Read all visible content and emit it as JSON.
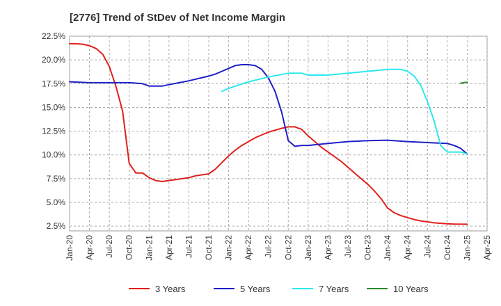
{
  "chart_data": {
    "type": "line",
    "title": "[2776]  Trend of StDev of Net Income Margin",
    "xlabel": "",
    "ylabel": "",
    "x_ticks": [
      "Jan-20",
      "Apr-20",
      "Jul-20",
      "Oct-20",
      "Jan-21",
      "Apr-21",
      "Jul-21",
      "Oct-21",
      "Jan-22",
      "Apr-22",
      "Jul-22",
      "Oct-22",
      "Jan-23",
      "Apr-23",
      "Jul-23",
      "Oct-23",
      "Jan-24",
      "Apr-24",
      "Jul-24",
      "Oct-24",
      "Jan-25",
      "Apr-25"
    ],
    "y_ticks": [
      "2.5%",
      "5.0%",
      "7.5%",
      "10.0%",
      "12.5%",
      "15.0%",
      "17.5%",
      "20.0%",
      "22.5%"
    ],
    "y_tick_values": [
      2.5,
      5.0,
      7.5,
      10.0,
      12.5,
      15.0,
      17.5,
      20.0,
      22.5
    ],
    "ylim": [
      2.0,
      22.5
    ],
    "grid": true,
    "legend_position": "bottom",
    "series": [
      {
        "name": "3 Years",
        "color": "#e0201b",
        "points": [
          [
            "Jan-20",
            21.7
          ],
          [
            "Feb-20",
            21.7
          ],
          [
            "Mar-20",
            21.65
          ],
          [
            "Apr-20",
            21.5
          ],
          [
            "May-20",
            21.2
          ],
          [
            "Jun-20",
            20.6
          ],
          [
            "Jul-20",
            19.3
          ],
          [
            "Aug-20",
            17.2
          ],
          [
            "Sep-20",
            14.6
          ],
          [
            "Oct-20",
            9.1
          ],
          [
            "Nov-20",
            8.1
          ],
          [
            "Dec-20",
            8.1
          ],
          [
            "Jan-21",
            7.6
          ],
          [
            "Feb-21",
            7.3
          ],
          [
            "Mar-21",
            7.2
          ],
          [
            "Apr-21",
            7.3
          ],
          [
            "May-21",
            7.4
          ],
          [
            "Jun-21",
            7.5
          ],
          [
            "Jul-21",
            7.6
          ],
          [
            "Aug-21",
            7.8
          ],
          [
            "Sep-21",
            7.9
          ],
          [
            "Oct-21",
            8.0
          ],
          [
            "Nov-21",
            8.5
          ],
          [
            "Dec-21",
            9.2
          ],
          [
            "Jan-22",
            9.9
          ],
          [
            "Feb-22",
            10.5
          ],
          [
            "Mar-22",
            11.0
          ],
          [
            "Apr-22",
            11.4
          ],
          [
            "May-22",
            11.8
          ],
          [
            "Jun-22",
            12.1
          ],
          [
            "Jul-22",
            12.4
          ],
          [
            "Aug-22",
            12.6
          ],
          [
            "Sep-22",
            12.8
          ],
          [
            "Oct-22",
            12.95
          ],
          [
            "Nov-22",
            12.95
          ],
          [
            "Dec-22",
            12.7
          ],
          [
            "Jan-23",
            12.0
          ],
          [
            "Feb-23",
            11.4
          ],
          [
            "Mar-23",
            10.8
          ],
          [
            "Apr-23",
            10.3
          ],
          [
            "May-23",
            9.8
          ],
          [
            "Jun-23",
            9.3
          ],
          [
            "Jul-23",
            8.7
          ],
          [
            "Aug-23",
            8.1
          ],
          [
            "Sep-23",
            7.5
          ],
          [
            "Oct-23",
            6.9
          ],
          [
            "Nov-23",
            6.2
          ],
          [
            "Dec-23",
            5.4
          ],
          [
            "Jan-24",
            4.4
          ],
          [
            "Feb-24",
            3.9
          ],
          [
            "Mar-24",
            3.6
          ],
          [
            "Apr-24",
            3.4
          ],
          [
            "May-24",
            3.2
          ],
          [
            "Jun-24",
            3.05
          ],
          [
            "Jul-24",
            2.95
          ],
          [
            "Aug-24",
            2.85
          ],
          [
            "Sep-24",
            2.8
          ],
          [
            "Oct-24",
            2.75
          ],
          [
            "Nov-24",
            2.72
          ],
          [
            "Dec-24",
            2.7
          ],
          [
            "Jan-25",
            2.7
          ]
        ]
      },
      {
        "name": "5 Years",
        "color": "#1f1fc8",
        "points": [
          [
            "Jan-20",
            17.7
          ],
          [
            "Apr-20",
            17.6
          ],
          [
            "Jul-20",
            17.6
          ],
          [
            "Oct-20",
            17.6
          ],
          [
            "Dec-20",
            17.5
          ],
          [
            "Jan-21",
            17.25
          ],
          [
            "Mar-21",
            17.25
          ],
          [
            "Apr-21",
            17.4
          ],
          [
            "Jul-21",
            17.8
          ],
          [
            "Oct-21",
            18.3
          ],
          [
            "Nov-21",
            18.5
          ],
          [
            "Dec-21",
            18.8
          ],
          [
            "Jan-22",
            19.1
          ],
          [
            "Feb-22",
            19.4
          ],
          [
            "Mar-22",
            19.5
          ],
          [
            "Apr-22",
            19.5
          ],
          [
            "May-22",
            19.4
          ],
          [
            "Jun-22",
            19.0
          ],
          [
            "Jul-22",
            18.1
          ],
          [
            "Aug-22",
            16.7
          ],
          [
            "Sep-22",
            14.5
          ],
          [
            "Oct-22",
            11.5
          ],
          [
            "Nov-22",
            10.9
          ],
          [
            "Dec-22",
            11.0
          ],
          [
            "Jan-23",
            11.0
          ],
          [
            "Apr-23",
            11.2
          ],
          [
            "Jul-23",
            11.4
          ],
          [
            "Oct-23",
            11.5
          ],
          [
            "Jan-24",
            11.55
          ],
          [
            "Apr-24",
            11.4
          ],
          [
            "Jul-24",
            11.3
          ],
          [
            "Oct-24",
            11.2
          ],
          [
            "Nov-24",
            11.0
          ],
          [
            "Dec-24",
            10.7
          ],
          [
            "Jan-25",
            10.1
          ]
        ]
      },
      {
        "name": "7 Years",
        "color": "#2ee8ee",
        "points": [
          [
            "Dec-21",
            16.7
          ],
          [
            "Jan-22",
            17.0
          ],
          [
            "Apr-22",
            17.7
          ],
          [
            "Jul-22",
            18.2
          ],
          [
            "Oct-22",
            18.6
          ],
          [
            "Dec-22",
            18.6
          ],
          [
            "Jan-23",
            18.4
          ],
          [
            "Apr-23",
            18.4
          ],
          [
            "Jul-23",
            18.6
          ],
          [
            "Oct-23",
            18.8
          ],
          [
            "Jan-24",
            19.0
          ],
          [
            "Mar-24",
            19.0
          ],
          [
            "Apr-24",
            18.8
          ],
          [
            "May-24",
            18.3
          ],
          [
            "Jun-24",
            17.3
          ],
          [
            "Jul-24",
            15.6
          ],
          [
            "Aug-24",
            13.6
          ],
          [
            "Sep-24",
            11.0
          ],
          [
            "Oct-24",
            10.3
          ],
          [
            "Nov-24",
            10.3
          ],
          [
            "Dec-24",
            10.3
          ],
          [
            "Jan-25",
            10.1
          ]
        ]
      },
      {
        "name": "10 Years",
        "color": "#2a8a2a",
        "points": [
          [
            "Dec-24",
            17.55
          ],
          [
            "Jan-25",
            17.65
          ]
        ]
      }
    ]
  }
}
